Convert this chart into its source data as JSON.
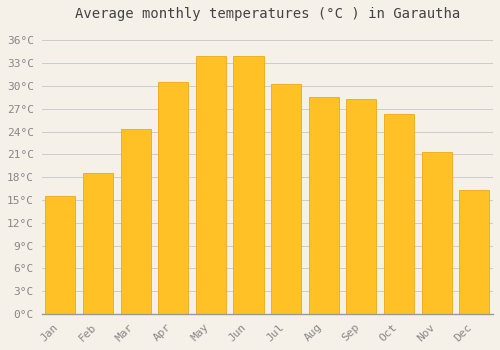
{
  "title": "Average monthly temperatures (°C ) in Garautha",
  "months": [
    "Jan",
    "Feb",
    "Mar",
    "Apr",
    "May",
    "Jun",
    "Jul",
    "Aug",
    "Sep",
    "Oct",
    "Nov",
    "Dec"
  ],
  "temperatures": [
    15.5,
    18.5,
    24.3,
    30.5,
    34.0,
    34.0,
    30.3,
    28.5,
    28.3,
    26.3,
    21.3,
    16.3
  ],
  "bar_color": "#FFC125",
  "bar_edge_color": "#E8A000",
  "background_color": "#F5F0E8",
  "grid_color": "#CCCCCC",
  "text_color": "#888888",
  "yticks": [
    0,
    3,
    6,
    9,
    12,
    15,
    18,
    21,
    24,
    27,
    30,
    33,
    36
  ],
  "ylim": [
    0,
    37.5
  ],
  "title_fontsize": 10,
  "tick_fontsize": 8,
  "font_family": "monospace"
}
